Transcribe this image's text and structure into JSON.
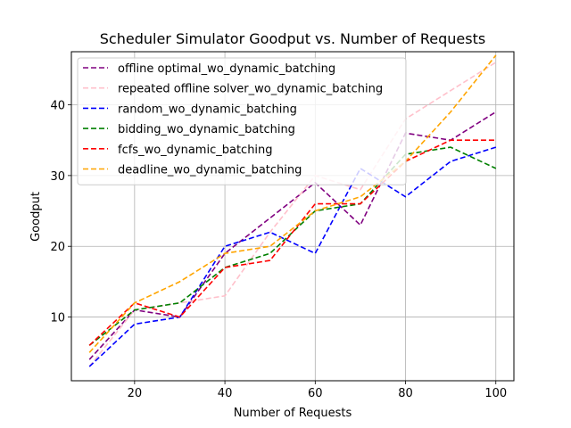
{
  "chart_data": {
    "type": "line",
    "title": "Scheduler Simulator Goodput vs. Number of Requests",
    "xlabel": "Number of Requests",
    "ylabel": "Goodput",
    "xlim": [
      6,
      104
    ],
    "ylim": [
      1,
      47.5
    ],
    "xticks": [
      20,
      40,
      60,
      80,
      100
    ],
    "yticks": [
      10,
      20,
      30,
      40
    ],
    "grid": true,
    "legend_position": "upper-left",
    "line_style": "dashed",
    "x": [
      10,
      20,
      30,
      40,
      50,
      60,
      70,
      80,
      90,
      100
    ],
    "series": [
      {
        "name": "offline optimal_wo_dynamic_batching",
        "color": "#800080",
        "values": [
          4,
          11,
          10,
          19,
          24,
          29,
          23,
          36,
          35,
          39
        ]
      },
      {
        "name": "repeated offline solver_wo_dynamic_batching",
        "color": "#ffc0cb",
        "values": [
          3,
          11,
          12,
          13,
          22,
          30,
          28,
          38,
          42,
          46
        ]
      },
      {
        "name": "random_wo_dynamic_batching",
        "color": "#0000ff",
        "values": [
          3,
          9,
          10,
          20,
          22,
          19,
          31,
          27,
          32,
          34
        ]
      },
      {
        "name": "bidding_wo_dynamic_batching",
        "color": "#008000",
        "values": [
          6,
          11,
          12,
          17,
          19,
          25,
          26,
          33,
          34,
          31
        ]
      },
      {
        "name": "fcfs_wo_dynamic_batching",
        "color": "#ff0000",
        "values": [
          6,
          12,
          10,
          17,
          18,
          26,
          26,
          32,
          35,
          35
        ]
      },
      {
        "name": "deadline_wo_dynamic_batching",
        "color": "#ffa500",
        "values": [
          5,
          12,
          15,
          19,
          20,
          25,
          27,
          32,
          39,
          47
        ]
      }
    ]
  }
}
